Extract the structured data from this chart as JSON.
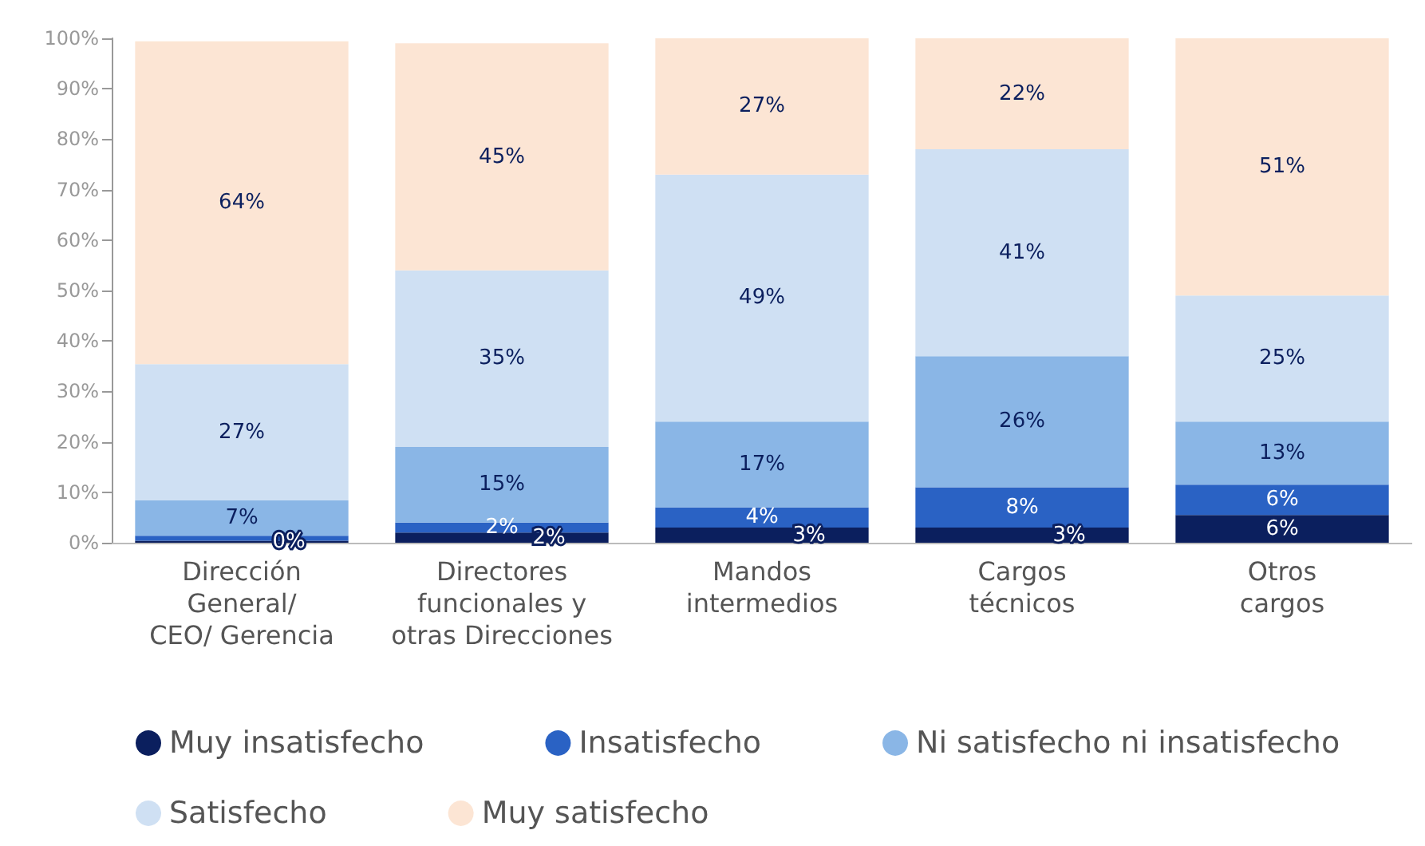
{
  "chart_data": {
    "type": "bar",
    "stacked": true,
    "categories": [
      "Dirección\nGeneral/\nCEO/ Gerencia",
      "Directores\nfuncionales y\notras Direcciones",
      "Mandos\nintermedios",
      "Cargos\ntécnicos",
      "Otros\ncargos"
    ],
    "series": [
      {
        "name": "Muy insatisfecho",
        "color": "#0b1f5e",
        "values": [
          0.4,
          2,
          3,
          3,
          5.5
        ],
        "value_labels": [
          "0%",
          "2%",
          "3%",
          "3%",
          "6%"
        ]
      },
      {
        "name": "Insatisfecho",
        "color": "#2a62c4",
        "values": [
          1,
          2,
          4,
          8,
          6
        ],
        "value_labels": [
          null,
          "2%",
          "4%",
          "8%",
          "6%"
        ]
      },
      {
        "name": "Ni satisfecho ni insatisfecho",
        "color": "#8ab6e6",
        "values": [
          7,
          15,
          17,
          26,
          12.5
        ],
        "value_labels": [
          "7%",
          "15%",
          "17%",
          "26%",
          "13%"
        ]
      },
      {
        "name": "Satisfecho",
        "color": "#cfe0f3",
        "values": [
          27,
          35,
          49,
          41,
          25
        ],
        "value_labels": [
          "27%",
          "35%",
          "49%",
          "41%",
          "25%"
        ]
      },
      {
        "name": "Muy satisfecho",
        "color": "#fce5d4",
        "values": [
          64,
          45,
          27,
          22,
          51
        ],
        "value_labels": [
          "64%",
          "45%",
          "27%",
          "22%",
          "51%"
        ]
      }
    ],
    "ylim": [
      0,
      100
    ],
    "yticks": [
      {
        "value": 0,
        "label": "0%"
      },
      {
        "value": 10,
        "label": "10%"
      },
      {
        "value": 20,
        "label": "20%"
      },
      {
        "value": 30,
        "label": "30%"
      },
      {
        "value": 40,
        "label": "40%"
      },
      {
        "value": 50,
        "label": "50%"
      },
      {
        "value": 60,
        "label": "60%"
      },
      {
        "value": 70,
        "label": "70%"
      },
      {
        "value": 80,
        "label": "80%"
      },
      {
        "value": 90,
        "label": "90%"
      },
      {
        "value": 100,
        "label": "100%"
      }
    ],
    "grid": false,
    "legend": "bottom"
  }
}
